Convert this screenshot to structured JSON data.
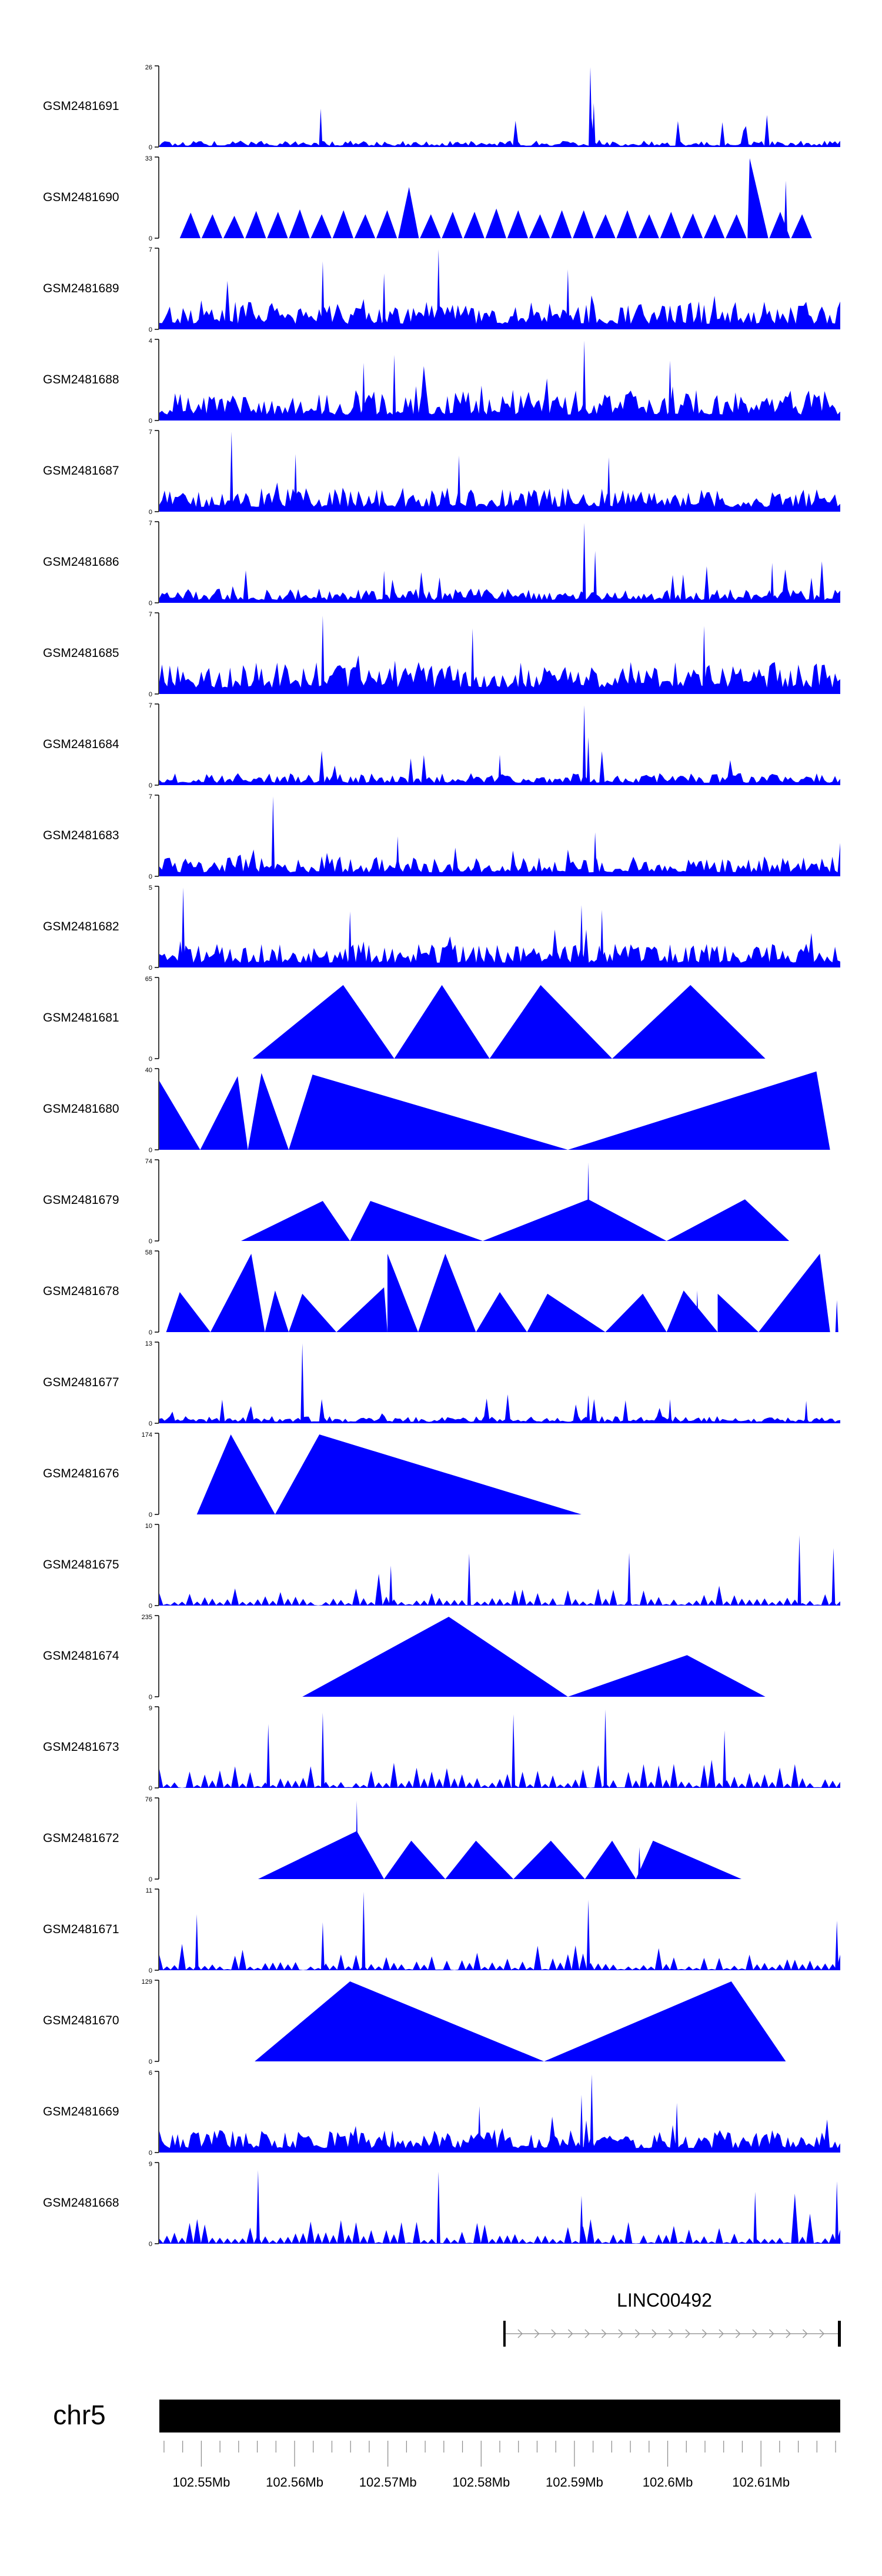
{
  "chart_data": {
    "type": "area",
    "title": "",
    "tracks": [
      {
        "name": "GSM2481691",
        "ymax": "26",
        "ymin": "0",
        "style": "dense",
        "seed": 11,
        "base": 0.08,
        "peaks": [
          [
            0.237,
            0.48
          ],
          [
            0.633,
            1.0
          ],
          [
            0.638,
            0.55
          ]
        ]
      },
      {
        "name": "GSM2481690",
        "ymax": "33",
        "ymin": "0",
        "style": "triangles",
        "seed": 12,
        "amps": [
          0.32,
          0.3,
          0.28,
          0.34,
          0.33,
          0.36,
          0.3,
          0.35,
          0.3,
          0.35,
          0.64,
          0.3,
          0.33,
          0.33,
          0.37,
          0.35,
          0.3,
          0.35,
          0.35,
          0.3,
          0.35,
          0.3,
          0.33,
          0.31,
          0.3,
          0.3,
          1.0,
          0.33,
          0.3
        ],
        "extra": [
          [
            0.92,
            0.72
          ]
        ]
      },
      {
        "name": "GSM2481689",
        "ymax": "7",
        "ymin": "0",
        "style": "dense",
        "seed": 13,
        "base": 0.35,
        "peaks": [
          [
            0.24,
            0.85
          ],
          [
            0.41,
            1.0
          ],
          [
            0.33,
            0.7
          ],
          [
            0.6,
            0.75
          ]
        ]
      },
      {
        "name": "GSM2481688",
        "ymax": "4",
        "ymin": "0",
        "style": "dense",
        "seed": 14,
        "base": 0.38,
        "peaks": [
          [
            0.624,
            1.0
          ],
          [
            0.345,
            0.82
          ],
          [
            0.3,
            0.72
          ],
          [
            0.75,
            0.75
          ]
        ]
      },
      {
        "name": "GSM2481687",
        "ymax": "7",
        "ymin": "0",
        "style": "dense",
        "seed": 15,
        "base": 0.3,
        "peaks": [
          [
            0.106,
            1.0
          ],
          [
            0.2,
            0.72
          ],
          [
            0.44,
            0.7
          ],
          [
            0.66,
            0.68
          ]
        ]
      },
      {
        "name": "GSM2481686",
        "ymax": "7",
        "ymin": "0",
        "style": "dense",
        "seed": 16,
        "base": 0.18,
        "peaks": [
          [
            0.624,
            1.0
          ],
          [
            0.64,
            0.65
          ],
          [
            0.9,
            0.5
          ],
          [
            0.33,
            0.4
          ]
        ]
      },
      {
        "name": "GSM2481685",
        "ymax": "7",
        "ymin": "0",
        "style": "dense",
        "seed": 17,
        "base": 0.4,
        "peaks": [
          [
            0.24,
            0.98
          ],
          [
            0.8,
            0.85
          ],
          [
            0.46,
            0.82
          ]
        ]
      },
      {
        "name": "GSM2481684",
        "ymax": "7",
        "ymin": "0",
        "style": "dense",
        "seed": 18,
        "base": 0.15,
        "peaks": [
          [
            0.624,
            1.0
          ],
          [
            0.63,
            0.6
          ],
          [
            0.5,
            0.38
          ]
        ]
      },
      {
        "name": "GSM2481683",
        "ymax": "7",
        "ymin": "0",
        "style": "dense",
        "seed": 19,
        "base": 0.25,
        "peaks": [
          [
            0.167,
            1.0
          ],
          [
            0.64,
            0.55
          ],
          [
            0.35,
            0.5
          ]
        ]
      },
      {
        "name": "GSM2481682",
        "ymax": "5",
        "ymin": "0",
        "style": "dense",
        "seed": 20,
        "base": 0.3,
        "peaks": [
          [
            0.035,
            1.0
          ],
          [
            0.62,
            0.78
          ],
          [
            0.28,
            0.7
          ],
          [
            0.65,
            0.72
          ]
        ]
      },
      {
        "name": "GSM2481681",
        "ymax": "65",
        "ymin": "0",
        "style": "tri_list",
        "tris": [
          [
            0.137,
            0.27,
            0.345,
            0.92
          ],
          [
            0.345,
            0.415,
            0.485,
            0.92
          ],
          [
            0.485,
            0.56,
            0.665,
            0.92
          ],
          [
            0.665,
            0.78,
            0.89,
            0.92
          ]
        ]
      },
      {
        "name": "GSM2481680",
        "ymax": "40",
        "ymin": "0",
        "style": "tri_list",
        "tris": [
          [
            0.0,
            0.0,
            0.06,
            0.86
          ],
          [
            0.06,
            0.115,
            0.13,
            0.92
          ],
          [
            0.13,
            0.15,
            0.19,
            0.96
          ],
          [
            0.19,
            0.225,
            0.6,
            0.94
          ],
          [
            0.6,
            0.965,
            0.985,
            0.98
          ]
        ]
      },
      {
        "name": "GSM2481679",
        "ymax": "74",
        "ymin": "0",
        "style": "tri_list",
        "tris": [
          [
            0.12,
            0.24,
            0.28,
            0.5
          ],
          [
            0.28,
            0.31,
            0.475,
            0.5
          ],
          [
            0.475,
            0.63,
            0.745,
            0.52
          ],
          [
            0.745,
            0.86,
            0.925,
            0.52
          ]
        ],
        "extra": [
          [
            0.63,
            0.98
          ],
          [
            0.632,
            0.45
          ]
        ]
      },
      {
        "name": "GSM2481678",
        "ymax": "58",
        "ymin": "0",
        "style": "tri_list",
        "tris": [
          [
            0.01,
            0.03,
            0.075,
            0.5
          ],
          [
            0.075,
            0.135,
            0.155,
            0.98
          ],
          [
            0.155,
            0.17,
            0.19,
            0.52
          ],
          [
            0.19,
            0.21,
            0.26,
            0.48
          ],
          [
            0.26,
            0.33,
            0.335,
            0.56
          ],
          [
            0.335,
            0.335,
            0.38,
            0.98
          ],
          [
            0.38,
            0.42,
            0.465,
            0.98
          ],
          [
            0.465,
            0.5,
            0.54,
            0.5
          ],
          [
            0.54,
            0.57,
            0.655,
            0.48
          ],
          [
            0.655,
            0.71,
            0.745,
            0.48
          ],
          [
            0.745,
            0.77,
            0.82,
            0.52
          ],
          [
            0.82,
            0.82,
            0.88,
            0.48
          ],
          [
            0.88,
            0.97,
            0.985,
            0.98
          ]
        ],
        "extra": [
          [
            0.34,
            0.42
          ],
          [
            0.4,
            0.48
          ],
          [
            0.79,
            0.52
          ],
          [
            0.995,
            0.4
          ]
        ]
      },
      {
        "name": "GSM2481677",
        "ymax": "13",
        "ymin": "0",
        "style": "dense",
        "seed": 21,
        "base": 0.09,
        "peaks": [
          [
            0.21,
            1.0
          ],
          [
            0.63,
            0.35
          ],
          [
            0.75,
            0.3
          ],
          [
            0.95,
            0.28
          ]
        ]
      },
      {
        "name": "GSM2481676",
        "ymax": "174",
        "ymin": "0",
        "style": "tri_list",
        "tris": [
          [
            0.055,
            0.105,
            0.17,
            1.0
          ],
          [
            0.17,
            0.235,
            0.62,
            1.0
          ]
        ]
      },
      {
        "name": "GSM2481675",
        "ymax": "10",
        "ymin": "0",
        "style": "sparse",
        "seed": 22,
        "base": 0.22,
        "peaks": [
          [
            0.94,
            0.88
          ],
          [
            0.69,
            0.66
          ],
          [
            0.455,
            0.65
          ],
          [
            0.34,
            0.5
          ],
          [
            0.99,
            0.72
          ]
        ]
      },
      {
        "name": "GSM2481674",
        "ymax": "235",
        "ymin": "0",
        "style": "tri_list",
        "tris": [
          [
            0.21,
            0.425,
            0.6,
            1.0
          ],
          [
            0.6,
            0.775,
            0.89,
            0.52
          ]
        ]
      },
      {
        "name": "GSM2481673",
        "ymax": "9",
        "ymin": "0",
        "style": "sparse",
        "seed": 23,
        "base": 0.3,
        "peaks": [
          [
            0.24,
            0.94
          ],
          [
            0.655,
            0.98
          ],
          [
            0.52,
            0.92
          ],
          [
            0.16,
            0.8
          ],
          [
            0.83,
            0.72
          ]
        ]
      },
      {
        "name": "GSM2481672",
        "ymax": "76",
        "ymin": "0",
        "style": "tri_list",
        "tris": [
          [
            0.145,
            0.29,
            0.33,
            0.6
          ],
          [
            0.33,
            0.37,
            0.42,
            0.48
          ],
          [
            0.42,
            0.465,
            0.52,
            0.48
          ],
          [
            0.52,
            0.575,
            0.625,
            0.48
          ],
          [
            0.625,
            0.665,
            0.7,
            0.48
          ],
          [
            0.7,
            0.725,
            0.855,
            0.48
          ]
        ],
        "extra": [
          [
            0.29,
            0.98
          ],
          [
            0.47,
            0.45
          ],
          [
            0.575,
            0.45
          ],
          [
            0.705,
            0.4
          ]
        ]
      },
      {
        "name": "GSM2481671",
        "ymax": "11",
        "ymin": "0",
        "style": "sparse",
        "seed": 24,
        "base": 0.22,
        "peaks": [
          [
            0.3,
            0.98
          ],
          [
            0.63,
            0.88
          ],
          [
            0.055,
            0.7
          ],
          [
            0.24,
            0.6
          ],
          [
            0.995,
            0.62
          ]
        ]
      },
      {
        "name": "GSM2481670",
        "ymax": "129",
        "ymin": "0",
        "style": "tri_list",
        "tris": [
          [
            0.14,
            0.28,
            0.565,
            1.0
          ],
          [
            0.565,
            0.84,
            0.92,
            1.0
          ]
        ]
      },
      {
        "name": "GSM2481669",
        "ymax": "6",
        "ymin": "0",
        "style": "dense",
        "seed": 25,
        "base": 0.28,
        "peaks": [
          [
            0.635,
            0.98
          ],
          [
            0.62,
            0.72
          ],
          [
            0.76,
            0.62
          ],
          [
            0.47,
            0.58
          ]
        ]
      },
      {
        "name": "GSM2481668",
        "ymax": "9",
        "ymin": "0",
        "style": "sparse",
        "seed": 26,
        "base": 0.3,
        "peaks": [
          [
            0.145,
            0.92
          ],
          [
            0.41,
            0.9
          ],
          [
            0.875,
            0.65
          ],
          [
            0.995,
            0.78
          ],
          [
            0.62,
            0.6
          ]
        ]
      }
    ],
    "gene": {
      "name": "LINC00492",
      "strand": "+"
    },
    "chromosome": "chr5",
    "x_axis": {
      "unit": "Mb",
      "range": [
        102.5455,
        102.6185
      ],
      "ticks": [
        102.55,
        102.56,
        102.57,
        102.58,
        102.59,
        102.6,
        102.61
      ],
      "tick_labels": [
        "102.55Mb",
        "102.56Mb",
        "102.57Mb",
        "102.58Mb",
        "102.59Mb",
        "102.6Mb",
        "102.61Mb"
      ],
      "minor_step": 0.002
    },
    "gene_span": [
      102.5825,
      102.6185
    ],
    "colors": {
      "fill": "#0000ff",
      "axis": "#000000",
      "gene": "#9a9a9a",
      "ideogram": "#000000"
    }
  }
}
